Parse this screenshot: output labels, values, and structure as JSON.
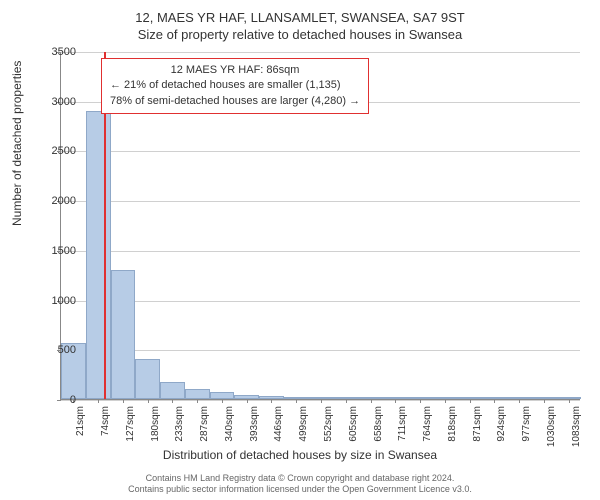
{
  "title": {
    "line1": "12, MAES YR HAF, LLANSAMLET, SWANSEA, SA7 9ST",
    "line2": "Size of property relative to detached houses in Swansea"
  },
  "chart": {
    "type": "histogram",
    "ylabel": "Number of detached properties",
    "xlabel": "Distribution of detached houses by size in Swansea",
    "ylim": [
      0,
      3500
    ],
    "ytick_step": 500,
    "yticks": [
      0,
      500,
      1000,
      1500,
      2000,
      2500,
      3000,
      3500
    ],
    "xticks": [
      "21sqm",
      "74sqm",
      "127sqm",
      "180sqm",
      "233sqm",
      "287sqm",
      "340sqm",
      "393sqm",
      "446sqm",
      "499sqm",
      "552sqm",
      "605sqm",
      "658sqm",
      "711sqm",
      "764sqm",
      "818sqm",
      "871sqm",
      "924sqm",
      "977sqm",
      "1030sqm",
      "1083sqm"
    ],
    "bar_color": "#b7cce6",
    "bar_border_color": "#8fa8c8",
    "grid_color": "#d0d0d0",
    "background_color": "#ffffff",
    "axis_color": "#888888",
    "values": [
      560,
      2900,
      1300,
      400,
      170,
      100,
      70,
      40,
      30,
      20,
      15,
      10,
      10,
      8,
      6,
      5,
      4,
      3,
      3,
      2,
      2
    ],
    "marker": {
      "position_sqm": 86,
      "color": "#e03030"
    },
    "callout": {
      "line1": "12 MAES YR HAF: 86sqm",
      "line2": "← 21% of detached houses are smaller (1,135)",
      "line3": "78% of semi-detached houses are larger (4,280) →",
      "border_color": "#e03030"
    }
  },
  "footer": {
    "line1": "Contains HM Land Registry data © Crown copyright and database right 2024.",
    "line2": "Contains public sector information licensed under the Open Government Licence v3.0."
  }
}
